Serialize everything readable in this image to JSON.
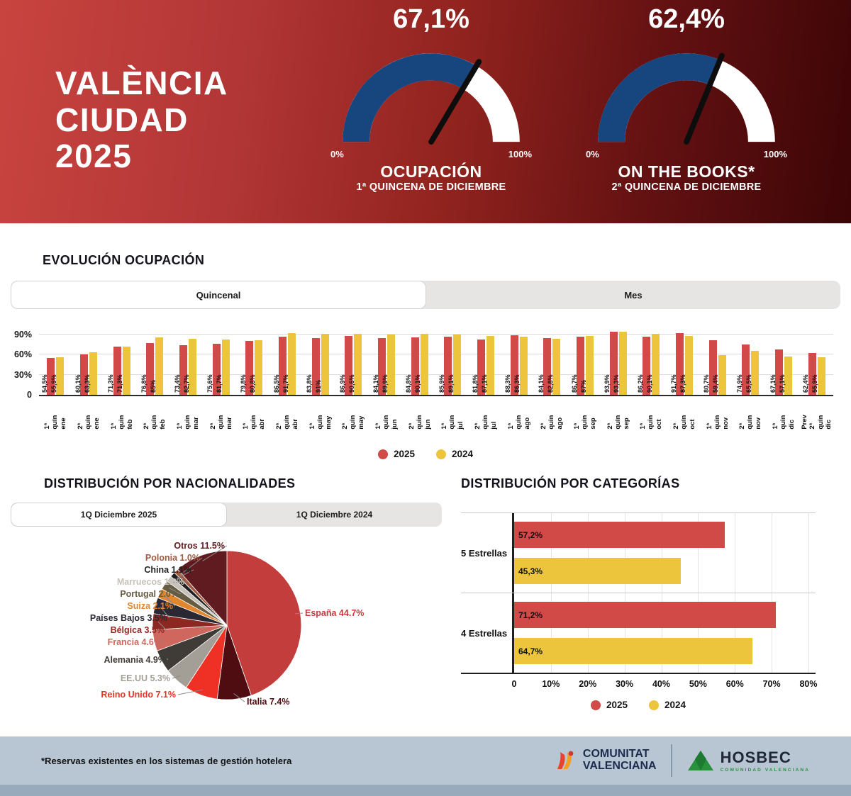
{
  "header": {
    "title": [
      "VALÈNCIA",
      "CIUDAD",
      "2025"
    ],
    "gauges": [
      {
        "value": 67.1,
        "value_label": "67,1%",
        "min_label": "0%",
        "max_label": "100%",
        "caption": "OCUPACIÓN",
        "subcaption": "1ª QUINCENA DE DICIEMBRE"
      },
      {
        "value": 62.4,
        "value_label": "62,4%",
        "min_label": "0%",
        "max_label": "100%",
        "caption": "ON THE BOOKS*",
        "subcaption": "2ª QUINCENA DE DICIEMBRE"
      }
    ],
    "gauge_colors": {
      "fill": "#17467f",
      "track": "#ffffff",
      "needle": "#0d0d0d"
    }
  },
  "evolution": {
    "title": "EVOLUCIÓN OCUPACIÓN",
    "tabs": [
      {
        "label": "Quincenal",
        "active": true
      },
      {
        "label": "Mes",
        "active": false
      }
    ]
  },
  "nationalities": {
    "title": "DISTRIBUCIÓN POR NACIONALIDADES",
    "tabs": [
      {
        "label": "1Q Diciembre 2025",
        "active": true
      },
      {
        "label": "1Q Diciembre 2024",
        "active": false
      }
    ]
  },
  "categories": {
    "title": "DISTRIBUCIÓN POR CATEGORÍAS"
  },
  "chart_data": [
    {
      "type": "bar",
      "name": "evolucion-ocupacion-quincenal",
      "categories": [
        "1ª quin\nene",
        "2ª quin\nene",
        "1ª quin\nfeb",
        "2ª quin\nfeb",
        "1ª quin\nmar",
        "2ª quin\nmar",
        "1ª quin\nabr",
        "2ª quin\nabr",
        "1ª quin\nmay",
        "2ª quin\nmay",
        "1ª quin\njun",
        "2ª quin\njun",
        "1ª quin\njul",
        "2ª quin\njul",
        "1ª quin\nago",
        "2ª quin\nago",
        "1ª quin\nsep",
        "2ª quin\nsep",
        "1ª quin\noct",
        "2ª quin\noct",
        "1ª quin\nnov",
        "2ª quin\nnov",
        "1ª quin\ndic",
        "Prev 2ª\nquin dic"
      ],
      "series": [
        {
          "name": "2025",
          "color": "#d14a47",
          "values": [
            54.5,
            60.1,
            71.3,
            76.8,
            73.4,
            75.6,
            79.8,
            86.5,
            83.8,
            86.9,
            84.1,
            84.8,
            85.9,
            81.8,
            88.3,
            84.1,
            86.7,
            93.9,
            86.2,
            91.7,
            80.7,
            74.9,
            67.1,
            62.4
          ],
          "labels": [
            "54,5%",
            "60,1%",
            "71,3%",
            "76,8%",
            "73,4%",
            "75,6%",
            "79,8%",
            "86,5%",
            "83,8%",
            "86,9%",
            "84,1%",
            "84,8%",
            "85,9%",
            "81,8%",
            "88,3%",
            "84,1%",
            "86,7%",
            "93,9%",
            "86,2%",
            "91,7%",
            "80,7%",
            "74,9%",
            "67,1%",
            "62,4%"
          ]
        },
        {
          "name": "2024",
          "color": "#ecc53d",
          "values": [
            55.9,
            63.3,
            71.3,
            85,
            82.7,
            81.7,
            80.8,
            91.7,
            91,
            90.6,
            89.9,
            90.1,
            89.1,
            87.1,
            86.3,
            82.8,
            87,
            93.3,
            90.1,
            87.3,
            59.4,
            65.5,
            57.1,
            55.9
          ],
          "labels": [
            "55,9%",
            "63,3%",
            "71,3%",
            "85%",
            "82,7%",
            "81,7%",
            "80,8%",
            "91,7%",
            "91%",
            "90,6%",
            "89,9%",
            "90,1%",
            "89,1%",
            "87,1%",
            "86,3%",
            "82,8%",
            "87%",
            "93,3%",
            "90,1%",
            "87,3%",
            "59,4%",
            "65,5%",
            "57,1%",
            "55,9%"
          ]
        }
      ],
      "yticks": [
        "0",
        "30%",
        "60%",
        "90%"
      ],
      "ylim": [
        0,
        100
      ],
      "grid": true,
      "legend_position": "bottom"
    },
    {
      "type": "pie",
      "name": "distribucion-nacionalidades-1q-diciembre-2025",
      "slices": [
        {
          "label": "España 44.7%",
          "value": 44.7,
          "color": "#c23d3c"
        },
        {
          "label": "Italia 7.4%",
          "value": 7.4,
          "color": "#4f0d11"
        },
        {
          "label": "Reino Unido 7.1%",
          "value": 7.1,
          "color": "#ee3124"
        },
        {
          "label": "EE.UU 5.3%",
          "value": 5.3,
          "color": "#a39f97"
        },
        {
          "label": "Alemania 4.9%",
          "value": 4.9,
          "color": "#3f3b36"
        },
        {
          "label": "Francia 4.6%",
          "value": 4.6,
          "color": "#cf675e"
        },
        {
          "label": "Bélgica 3.5%",
          "value": 3.5,
          "color": "#8c2722"
        },
        {
          "label": "Países Bajos 3.5%",
          "value": 3.5,
          "color": "#2a2833"
        },
        {
          "label": "Suiza 2.1%",
          "value": 2.1,
          "color": "#e0862f"
        },
        {
          "label": "Portugal 2.0%",
          "value": 2.0,
          "color": "#655c42"
        },
        {
          "label": "Marruecos 1.3%",
          "value": 1.3,
          "color": "#c6c2ba"
        },
        {
          "label": "China 1.1%",
          "value": 1.1,
          "color": "#1f1f1f"
        },
        {
          "label": "Polonia 1.0%",
          "value": 1.0,
          "color": "#a05a41"
        },
        {
          "label": "Otros 11.5%",
          "value": 11.5,
          "color": "#5f1b1f"
        }
      ]
    },
    {
      "type": "bar-horizontal",
      "name": "distribucion-categorias",
      "categories": [
        "5 Estrellas",
        "4 Estrellas"
      ],
      "series": [
        {
          "name": "2025",
          "color": "#d14a47",
          "values": [
            57.2,
            71.2
          ],
          "labels": [
            "57,2%",
            "71,2%"
          ]
        },
        {
          "name": "2024",
          "color": "#ecc53d",
          "values": [
            45.3,
            64.7
          ],
          "labels": [
            "45,3%",
            "64,7%"
          ]
        }
      ],
      "xticks": [
        "0",
        "10%",
        "20%",
        "30%",
        "40%",
        "50%",
        "60%",
        "70%",
        "80%"
      ],
      "xlim": [
        0,
        80
      ],
      "grid": true,
      "legend_position": "bottom"
    }
  ],
  "footer": {
    "note": "*Reservas existentes en los sistemas de gestión hotelera",
    "cv_logo": [
      "COMUNITAT",
      "VALENCIANA"
    ],
    "hosbec_logo": "HOSBEC",
    "hosbec_sub": "COMUNIDAD VALENCIANA"
  }
}
